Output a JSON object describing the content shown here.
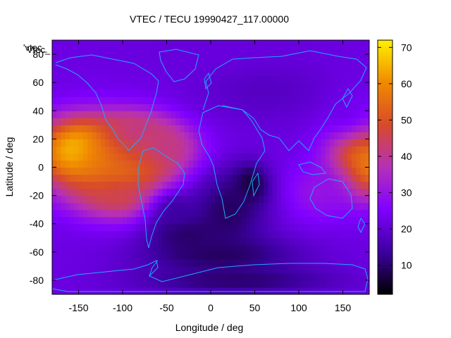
{
  "chart_data": {
    "type": "heatmap",
    "title": "VTEC / TECU 19990427_117.00000",
    "xlabel": "Longitude / deg",
    "ylabel": "Latitude / deg",
    "plot_key_label": "'vtec_",
    "key_overlap_label": "Vtec_",
    "xlim": [
      -180,
      180
    ],
    "ylim": [
      -90,
      90
    ],
    "x_ticks": [
      -150,
      -100,
      -50,
      0,
      50,
      100,
      150
    ],
    "y_ticks": [
      -80,
      -60,
      -40,
      -20,
      0,
      20,
      40,
      60,
      80
    ],
    "colorbar": {
      "range": [
        2,
        72
      ],
      "ticks": [
        10,
        20,
        30,
        40,
        50,
        60,
        70
      ],
      "palette": [
        "#000000",
        "#3d00a0",
        "#8000ff",
        "#b530b8",
        "#d84a2a",
        "#f08a00",
        "#fff000"
      ]
    },
    "grid": false,
    "legend": "none",
    "overlay": "coastlines",
    "coastline_color": "#1fa8ff",
    "regions": [
      {
        "lon": -118,
        "lat": 10,
        "rx": 78,
        "ry": 24,
        "value": 60
      },
      {
        "lon": -150,
        "lat": 12,
        "rx": 40,
        "ry": 20,
        "value": 68
      },
      {
        "lon": -105,
        "lat": -2,
        "rx": 55,
        "ry": 26,
        "value": 58
      },
      {
        "lon": -80,
        "lat": 14,
        "rx": 40,
        "ry": 18,
        "value": 50
      },
      {
        "lon": -50,
        "lat": 14,
        "rx": 30,
        "ry": 14,
        "value": 42
      },
      {
        "lon": -85,
        "lat": 26,
        "rx": 35,
        "ry": 12,
        "value": 42
      },
      {
        "lon": -100,
        "lat": -20,
        "rx": 50,
        "ry": 14,
        "value": 46
      },
      {
        "lon": 165,
        "lat": 8,
        "rx": 35,
        "ry": 26,
        "value": 52
      },
      {
        "lon": 178,
        "lat": 2,
        "rx": 20,
        "ry": 20,
        "value": 58
      },
      {
        "lon": 120,
        "lat": -18,
        "rx": 40,
        "ry": 20,
        "value": 30
      },
      {
        "lon": 150,
        "lat": 40,
        "rx": 35,
        "ry": 18,
        "value": 24
      },
      {
        "lon": 45,
        "lat": -12,
        "rx": 20,
        "ry": 14,
        "value": 4
      },
      {
        "lon": 20,
        "lat": -30,
        "rx": 45,
        "ry": 30,
        "value": 9
      },
      {
        "lon": -30,
        "lat": -45,
        "rx": 40,
        "ry": 15,
        "value": 8
      },
      {
        "lon": 10,
        "lat": -62,
        "rx": 90,
        "ry": 14,
        "value": 9
      },
      {
        "lon": 30,
        "lat": -80,
        "rx": 110,
        "ry": 10,
        "value": 10
      },
      {
        "lon": -40,
        "lat": -30,
        "rx": 30,
        "ry": 15,
        "value": 14
      },
      {
        "lon": 60,
        "lat": 55,
        "rx": 80,
        "ry": 25,
        "value": 18
      },
      {
        "lon": -10,
        "lat": 80,
        "rx": 120,
        "ry": 12,
        "value": 21
      }
    ],
    "base_value": 22
  }
}
